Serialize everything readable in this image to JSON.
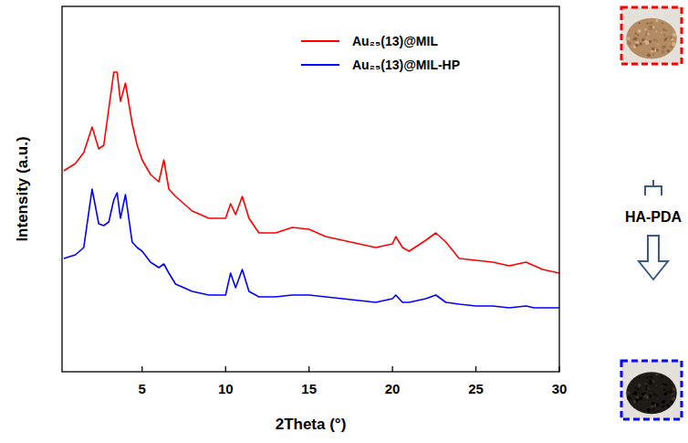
{
  "chart_data": {
    "type": "line",
    "xlabel": "2Theta (°)",
    "ylabel": "Intensity (a.u.)",
    "x": [
      0.3,
      1.0,
      1.5,
      2.0,
      2.4,
      2.7,
      3.0,
      3.3,
      3.5,
      3.7,
      4.0,
      4.4,
      4.7,
      5.0,
      5.5,
      6.0,
      6.3,
      6.6,
      7,
      8,
      9,
      10,
      10.3,
      10.6,
      11.0,
      11.4,
      12,
      13,
      14,
      15,
      16,
      17,
      18,
      19,
      20,
      20.2,
      20.6,
      21,
      22,
      22.6,
      23.2,
      24,
      25,
      26,
      27,
      28,
      28.5,
      29,
      30
    ],
    "series": [
      {
        "name": "Au₂₅(13)@MIL",
        "color": "#ff0000",
        "values": [
          55,
          57,
          60,
          67,
          61,
          62,
          72,
          82,
          82,
          74,
          79,
          68,
          62,
          58,
          54,
          52,
          58,
          50,
          48,
          44,
          42,
          42,
          46,
          43,
          48,
          42,
          38,
          38,
          39.5,
          39,
          37,
          36,
          35,
          34,
          35,
          37,
          34,
          33,
          36,
          38,
          35.5,
          31,
          30.5,
          30,
          29,
          30,
          29,
          28,
          27
        ]
      },
      {
        "name": "Au₂₅(13)@MIL-HP",
        "color": "#0000ff",
        "values": [
          31,
          32,
          34,
          50,
          40.5,
          40,
          41,
          47,
          49,
          42,
          48.5,
          35.5,
          34,
          33,
          30,
          28.5,
          29.5,
          27,
          24,
          22,
          21,
          21,
          27,
          23,
          28,
          22,
          20.5,
          20.5,
          21,
          21,
          20.5,
          20,
          19.5,
          19,
          20,
          21,
          19,
          19,
          20,
          21,
          19,
          18.5,
          18,
          18,
          17.5,
          18,
          17.5,
          17.5,
          17.5
        ]
      }
    ],
    "xlim": [
      0.2,
      30
    ],
    "xticks": [
      5,
      10,
      15,
      20,
      25,
      30
    ],
    "ylim": [
      0,
      100
    ],
    "tick_labels": "x",
    "legend": "upper right",
    "annotations": [
      "HA-PDA"
    ]
  }
}
